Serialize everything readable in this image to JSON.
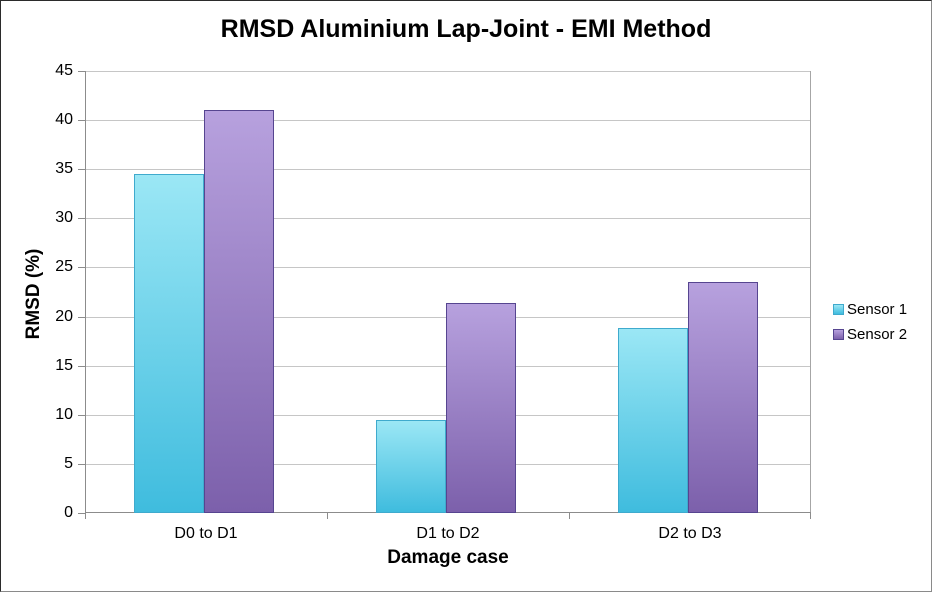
{
  "chart_data": {
    "type": "bar",
    "title": "RMSD Aluminium Lap-Joint - EMI Method",
    "xlabel": "Damage case",
    "ylabel": "RMSD (%)",
    "categories": [
      "D0 to D1",
      "D1 to D2",
      "D2 to D3"
    ],
    "series": [
      {
        "name": "Sensor 1",
        "values": [
          34.5,
          9.5,
          18.8
        ],
        "fill_top": "#9BE7F5",
        "fill_bottom": "#3FBCDE",
        "border": "#3FAACD"
      },
      {
        "name": "Sensor 2",
        "values": [
          41,
          21.4,
          23.5
        ],
        "fill_top": "#B7A1DE",
        "fill_bottom": "#7C60AB",
        "border": "#564590"
      }
    ],
    "ylim": [
      0,
      45
    ],
    "yticks": [
      0,
      5,
      10,
      15,
      20,
      25,
      30,
      35,
      40,
      45
    ],
    "grid": true,
    "legend_position": "right"
  },
  "colors": {
    "gridline": "#C6C6C6",
    "axis": "#8C8C8C",
    "plot_right_border": "#A6A6A6"
  }
}
